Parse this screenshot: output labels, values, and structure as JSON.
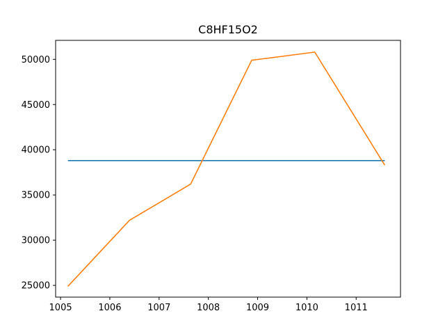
{
  "chart_data": {
    "type": "line",
    "title": "C8HF15O2",
    "xlabel": "",
    "ylabel": "",
    "xlim": [
      1004.9,
      1011.9
    ],
    "ylim": [
      23700,
      52100
    ],
    "xticks": [
      1005,
      1006,
      1007,
      1008,
      1009,
      1010,
      1011
    ],
    "yticks": [
      25000,
      30000,
      35000,
      40000,
      45000,
      50000
    ],
    "grid": false,
    "legend": "none",
    "series": [
      {
        "color": "#1f77b4",
        "x": [
          1005.15,
          1011.58
        ],
        "y": [
          38800,
          38800
        ]
      },
      {
        "color": "#ff7f0e",
        "x": [
          1005.15,
          1006.4,
          1007.64,
          1008.88,
          1010.16,
          1011.58
        ],
        "y": [
          24900,
          32200,
          36200,
          49900,
          50800,
          38300
        ]
      }
    ]
  }
}
